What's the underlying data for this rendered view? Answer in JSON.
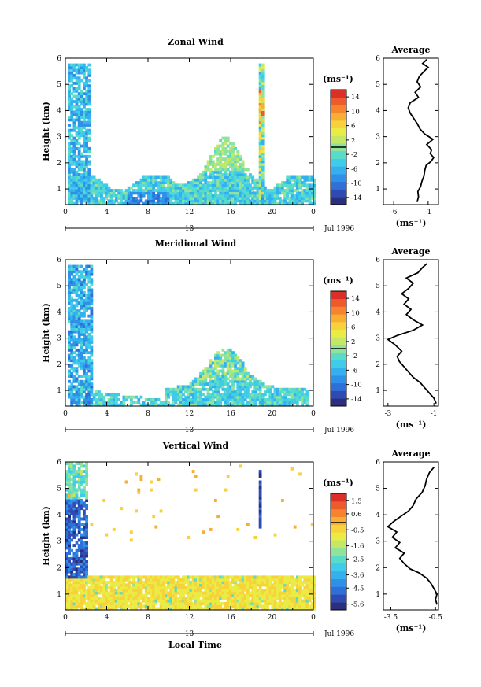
{
  "figure": {
    "xlabel": "Local Time",
    "date_label": "Jul 1996",
    "day_label": "13"
  },
  "chart_data": [
    {
      "type": "heatmap",
      "title": "Zonal Wind",
      "ylabel": "Height (km)",
      "xlabel": "Local Time",
      "x_ticks": [
        "0",
        "4",
        "8",
        "12",
        "16",
        "20",
        "0"
      ],
      "y_ticks": [
        "1",
        "2",
        "3",
        "4",
        "5",
        "6"
      ],
      "xlim": [
        0,
        24
      ],
      "ylim": [
        0.4,
        6
      ],
      "colorbar": {
        "unit": "(ms⁻¹)",
        "ticks": [
          "14",
          "10",
          "6",
          "2",
          "-2",
          "-6",
          "-10",
          "-14"
        ],
        "range": [
          -16,
          16
        ]
      },
      "profile": {
        "title": "Average",
        "xlabel": "(ms⁻¹)",
        "x_ticks": [
          "-6",
          "-1"
        ],
        "xlim": [
          -7.5,
          0.5
        ],
        "points": [
          [
            -2.6,
            0.5
          ],
          [
            -2.4,
            0.7
          ],
          [
            -2.5,
            0.9
          ],
          [
            -2.1,
            1.1
          ],
          [
            -1.9,
            1.3
          ],
          [
            -1.6,
            1.5
          ],
          [
            -1.5,
            1.7
          ],
          [
            -1.3,
            1.9
          ],
          [
            -0.6,
            2.05
          ],
          [
            -0.2,
            2.2
          ],
          [
            -0.7,
            2.35
          ],
          [
            -0.5,
            2.5
          ],
          [
            -1.2,
            2.7
          ],
          [
            -0.3,
            2.9
          ],
          [
            -1.5,
            3.1
          ],
          [
            -2.2,
            3.3
          ],
          [
            -2.6,
            3.5
          ],
          [
            -3.1,
            3.7
          ],
          [
            -3.6,
            3.9
          ],
          [
            -3.9,
            4.1
          ],
          [
            -3.6,
            4.3
          ],
          [
            -2.4,
            4.5
          ],
          [
            -2.9,
            4.7
          ],
          [
            -2.1,
            4.9
          ],
          [
            -2.6,
            5.1
          ],
          [
            -2.3,
            5.3
          ],
          [
            -1.6,
            5.5
          ],
          [
            -1.0,
            5.65
          ],
          [
            -1.8,
            5.8
          ],
          [
            -1.2,
            5.95
          ]
        ]
      }
    },
    {
      "type": "heatmap",
      "title": "Meridional Wind",
      "ylabel": "Height (km)",
      "xlabel": "Local Time",
      "x_ticks": [
        "0",
        "4",
        "8",
        "12",
        "16",
        "20",
        "0"
      ],
      "y_ticks": [
        "1",
        "2",
        "3",
        "4",
        "5",
        "6"
      ],
      "xlim": [
        0,
        24
      ],
      "ylim": [
        0.4,
        6
      ],
      "colorbar": {
        "unit": "(ms⁻¹)",
        "ticks": [
          "14",
          "10",
          "6",
          "2",
          "-2",
          "-6",
          "-10",
          "-14"
        ],
        "range": [
          -16,
          16
        ]
      },
      "profile": {
        "title": "Average",
        "xlabel": "(ms⁻¹)",
        "x_ticks": [
          "-3",
          "-1"
        ],
        "xlim": [
          -3.2,
          -0.8
        ],
        "points": [
          [
            -0.9,
            0.5
          ],
          [
            -1.0,
            0.7
          ],
          [
            -1.2,
            0.9
          ],
          [
            -1.4,
            1.1
          ],
          [
            -1.6,
            1.3
          ],
          [
            -1.9,
            1.5
          ],
          [
            -2.1,
            1.7
          ],
          [
            -2.3,
            1.9
          ],
          [
            -2.5,
            2.1
          ],
          [
            -2.6,
            2.3
          ],
          [
            -2.4,
            2.5
          ],
          [
            -2.7,
            2.75
          ],
          [
            -3.0,
            2.95
          ],
          [
            -2.6,
            3.1
          ],
          [
            -1.9,
            3.3
          ],
          [
            -1.5,
            3.5
          ],
          [
            -1.9,
            3.7
          ],
          [
            -2.2,
            3.9
          ],
          [
            -2.0,
            4.1
          ],
          [
            -2.3,
            4.3
          ],
          [
            -2.1,
            4.5
          ],
          [
            -2.4,
            4.7
          ],
          [
            -2.1,
            4.9
          ],
          [
            -1.9,
            5.1
          ],
          [
            -2.2,
            5.3
          ],
          [
            -1.7,
            5.5
          ],
          [
            -1.5,
            5.7
          ],
          [
            -1.3,
            5.85
          ]
        ]
      }
    },
    {
      "type": "heatmap",
      "title": "Vertical Wind",
      "ylabel": "Height (km)",
      "xlabel": "Local Time",
      "x_ticks": [
        "0",
        "4",
        "8",
        "12",
        "16",
        "20",
        "0"
      ],
      "y_ticks": [
        "1",
        "2",
        "3",
        "4",
        "5",
        "6"
      ],
      "xlim": [
        0,
        24
      ],
      "ylim": [
        0.4,
        6
      ],
      "colorbar": {
        "unit": "(ms⁻¹)",
        "ticks": [
          "1.5",
          "0.6",
          "-0.5",
          "-1.6",
          "-2.5",
          "-3.6",
          "-4.5",
          "-5.6"
        ],
        "range": [
          -6,
          2
        ]
      },
      "profile": {
        "title": "Average",
        "xlabel": "(ms⁻¹)",
        "x_ticks": [
          "-3.5",
          "-0.5"
        ],
        "xlim": [
          -4.0,
          -0.3
        ],
        "points": [
          [
            -0.4,
            0.6
          ],
          [
            -0.5,
            0.8
          ],
          [
            -0.4,
            1.0
          ],
          [
            -0.6,
            1.2
          ],
          [
            -0.8,
            1.4
          ],
          [
            -1.1,
            1.6
          ],
          [
            -1.6,
            1.8
          ],
          [
            -2.2,
            1.95
          ],
          [
            -2.6,
            2.15
          ],
          [
            -2.9,
            2.35
          ],
          [
            -2.6,
            2.55
          ],
          [
            -3.2,
            2.75
          ],
          [
            -2.9,
            2.95
          ],
          [
            -3.4,
            3.15
          ],
          [
            -3.1,
            3.35
          ],
          [
            -3.7,
            3.55
          ],
          [
            -3.3,
            3.75
          ],
          [
            -2.8,
            3.95
          ],
          [
            -2.3,
            4.15
          ],
          [
            -2.0,
            4.35
          ],
          [
            -1.8,
            4.6
          ],
          [
            -1.4,
            4.85
          ],
          [
            -1.2,
            5.1
          ],
          [
            -1.1,
            5.35
          ],
          [
            -0.9,
            5.6
          ],
          [
            -0.6,
            5.8
          ]
        ]
      }
    }
  ]
}
